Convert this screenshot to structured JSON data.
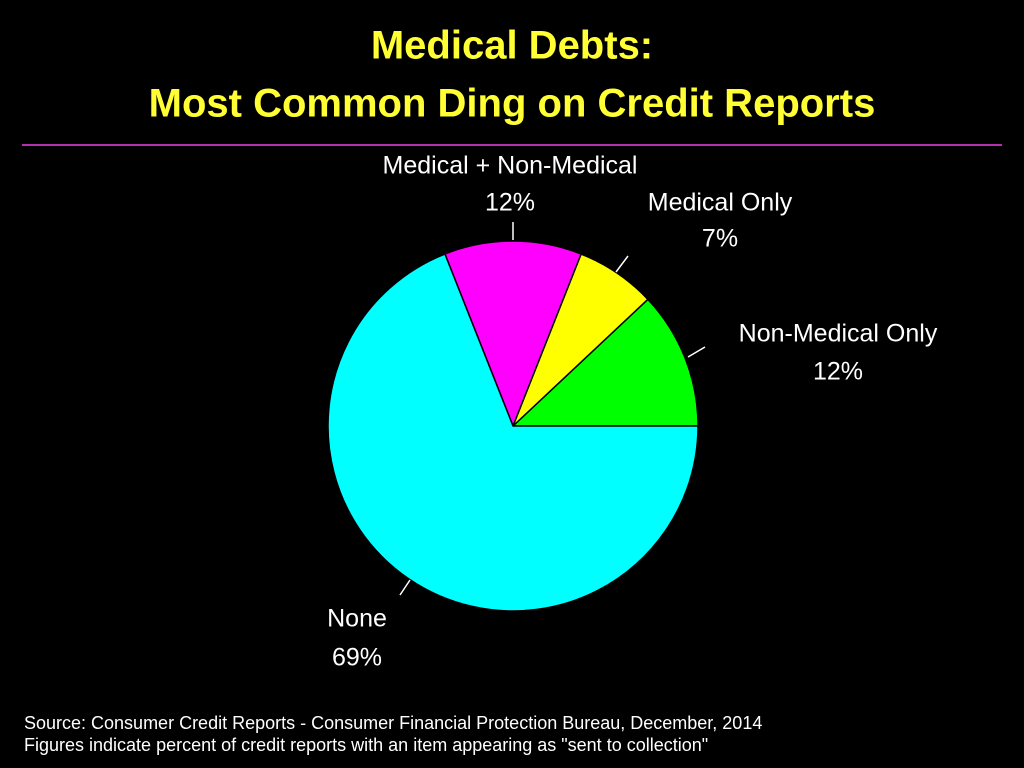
{
  "chart_data": {
    "type": "pie",
    "title": "Medical Debts:",
    "subtitle": "Most Common Ding on Credit Reports",
    "categories": [
      "Non-Medical Only",
      "Medical Only",
      "Medical + Non-Medical",
      "None"
    ],
    "values": [
      12,
      7,
      12,
      69
    ],
    "value_labels": [
      "12%",
      "7%",
      "12%",
      "69%"
    ],
    "colors": [
      "#00ff00",
      "#ffff00",
      "#ff00ff",
      "#00ffff"
    ],
    "source": "Source: Consumer Credit Reports - Consumer Financial Protection Bureau, December, 2014",
    "note": "Figures indicate percent of credit reports with an item appearing as \"sent to collection\""
  }
}
